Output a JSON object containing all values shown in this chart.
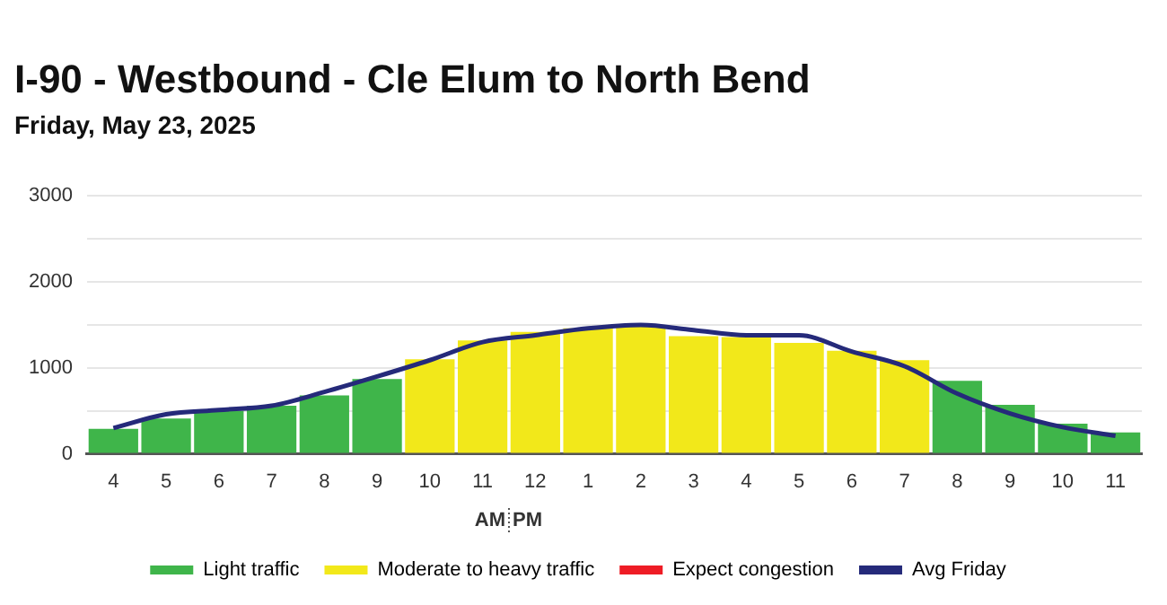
{
  "chart_data": {
    "type": "bar",
    "title": "I-90 - Westbound - Cle Elum to North Bend",
    "subtitle": "Friday, May 23, 2025",
    "categories": [
      "4",
      "5",
      "6",
      "7",
      "8",
      "9",
      "10",
      "11",
      "12",
      "1",
      "2",
      "3",
      "4",
      "5",
      "6",
      "7",
      "8",
      "9",
      "10",
      "11"
    ],
    "stacked": true,
    "series": [
      {
        "name": "Light traffic",
        "color": "#3fb54a",
        "values": [
          290,
          410,
          500,
          560,
          680,
          870,
          null,
          null,
          null,
          null,
          null,
          null,
          null,
          null,
          null,
          null,
          850,
          570,
          350,
          250
        ]
      },
      {
        "name": "Moderate to heavy traffic",
        "color": "#f2e81a",
        "values": [
          null,
          null,
          null,
          null,
          null,
          null,
          1100,
          1320,
          1420,
          1460,
          1480,
          1370,
          1360,
          1290,
          1200,
          1090,
          null,
          null,
          null,
          null
        ]
      },
      {
        "name": "Expect congestion",
        "color": "#ee1c25",
        "values": [
          null,
          null,
          null,
          null,
          null,
          null,
          null,
          null,
          null,
          null,
          null,
          null,
          null,
          null,
          null,
          null,
          null,
          null,
          null,
          null
        ]
      },
      {
        "name": "Avg Friday",
        "type": "line",
        "color": "#252a7a",
        "values": [
          300,
          460,
          510,
          560,
          720,
          900,
          1090,
          1300,
          1380,
          1460,
          1500,
          1440,
          1380,
          1380,
          1190,
          1020,
          700,
          470,
          310,
          210
        ]
      }
    ],
    "ylim": [
      0,
      3000
    ],
    "yticks": [
      0,
      {
        "value": 500,
        "label": null
      },
      1000,
      {
        "value": 1500,
        "label": null
      },
      2000,
      {
        "value": 2500,
        "label": null
      },
      3000
    ],
    "grid": "y",
    "legend": "bottom",
    "marker": "none",
    "annotations": [
      "AM",
      "PM"
    ]
  }
}
